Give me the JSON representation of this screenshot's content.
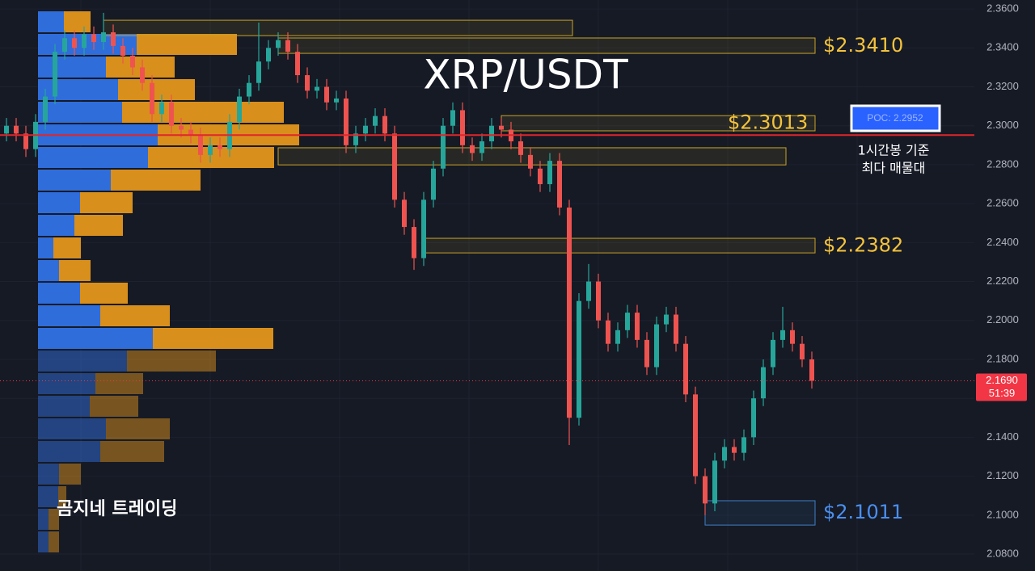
{
  "chart_data": {
    "type": "candlestick",
    "title": "XRP/USDT",
    "ylim": [
      2.0713,
      2.3646
    ],
    "yticks": [
      {
        "value": 2.08,
        "label": "2.0800"
      },
      {
        "value": 2.1,
        "label": "2.1000"
      },
      {
        "value": 2.12,
        "label": "2.1200"
      },
      {
        "value": 2.14,
        "label": "2.1400"
      },
      {
        "value": 2.16,
        "label": "2.1600"
      },
      {
        "value": 2.18,
        "label": "2.1800"
      },
      {
        "value": 2.2,
        "label": "2.2000"
      },
      {
        "value": 2.22,
        "label": "2.2200"
      },
      {
        "value": 2.24,
        "label": "2.2400"
      },
      {
        "value": 2.26,
        "label": "2.2600"
      },
      {
        "value": 2.28,
        "label": "2.2800"
      },
      {
        "value": 2.3,
        "label": "2.3000"
      },
      {
        "value": 2.32,
        "label": "2.3200"
      },
      {
        "value": 2.34,
        "label": "2.3400"
      },
      {
        "value": 2.36,
        "label": "2.3600"
      }
    ],
    "grid": true,
    "up_color": "#26a69a",
    "down_color": "#ef5350",
    "open": [
      2.296,
      2.3,
      2.296,
      2.288,
      2.302,
      2.315,
      2.338,
      2.345,
      2.34,
      2.347,
      2.343,
      2.348,
      2.341,
      2.336,
      2.33,
      2.322,
      2.306,
      2.312,
      2.3,
      2.298,
      2.295,
      2.285,
      2.29,
      2.288,
      2.302,
      2.315,
      2.322,
      2.333,
      2.34,
      2.344,
      2.338,
      2.326,
      2.318,
      2.32,
      2.312,
      2.314,
      2.29,
      2.296,
      2.3,
      2.305,
      2.296,
      2.262,
      2.248,
      2.232,
      2.262,
      2.278,
      2.3,
      2.308,
      2.29,
      2.286,
      2.292,
      2.3,
      2.298,
      2.292,
      2.285,
      2.278,
      2.27,
      2.282,
      2.258,
      2.15,
      2.21,
      2.22,
      2.2,
      2.188,
      2.195,
      2.204,
      2.19,
      2.176,
      2.198,
      2.203,
      2.188,
      2.162,
      2.12,
      2.106,
      2.128,
      2.135,
      2.132,
      2.14,
      2.16,
      2.176,
      2.19,
      2.195,
      2.188,
      2.18
    ],
    "high": [
      2.304,
      2.304,
      2.3,
      2.306,
      2.319,
      2.342,
      2.349,
      2.349,
      2.351,
      2.351,
      2.358,
      2.352,
      2.345,
      2.34,
      2.334,
      2.326,
      2.316,
      2.316,
      2.304,
      2.302,
      2.299,
      2.294,
      2.294,
      2.306,
      2.319,
      2.326,
      2.353,
      2.344,
      2.348,
      2.348,
      2.342,
      2.33,
      2.324,
      2.324,
      2.318,
      2.318,
      2.3,
      2.304,
      2.309,
      2.309,
      2.3,
      2.266,
      2.252,
      2.266,
      2.282,
      2.304,
      2.312,
      2.312,
      2.294,
      2.296,
      2.304,
      2.304,
      2.302,
      2.296,
      2.289,
      2.282,
      2.286,
      2.286,
      2.262,
      2.214,
      2.229,
      2.224,
      2.204,
      2.199,
      2.208,
      2.208,
      2.194,
      2.202,
      2.207,
      2.207,
      2.192,
      2.166,
      2.124,
      2.132,
      2.139,
      2.139,
      2.144,
      2.164,
      2.18,
      2.194,
      2.207,
      2.199,
      2.192,
      2.184
    ],
    "low": [
      2.292,
      2.292,
      2.284,
      2.284,
      2.298,
      2.311,
      2.334,
      2.336,
      2.336,
      2.339,
      2.339,
      2.337,
      2.332,
      2.326,
      2.318,
      2.302,
      2.302,
      2.296,
      2.294,
      2.291,
      2.281,
      2.281,
      2.284,
      2.284,
      2.298,
      2.311,
      2.318,
      2.329,
      2.336,
      2.334,
      2.322,
      2.314,
      2.314,
      2.308,
      2.308,
      2.286,
      2.286,
      2.292,
      2.296,
      2.292,
      2.258,
      2.244,
      2.226,
      2.228,
      2.258,
      2.274,
      2.296,
      2.286,
      2.282,
      2.282,
      2.288,
      2.294,
      2.288,
      2.281,
      2.274,
      2.266,
      2.266,
      2.254,
      2.136,
      2.146,
      2.206,
      2.196,
      2.184,
      2.184,
      2.191,
      2.186,
      2.172,
      2.172,
      2.194,
      2.184,
      2.158,
      2.116,
      2.1,
      2.102,
      2.124,
      2.128,
      2.128,
      2.136,
      2.156,
      2.172,
      2.186,
      2.184,
      2.176,
      2.165
    ],
    "close": [
      2.3,
      2.296,
      2.288,
      2.302,
      2.315,
      2.338,
      2.345,
      2.34,
      2.347,
      2.343,
      2.348,
      2.341,
      2.336,
      2.33,
      2.322,
      2.306,
      2.312,
      2.3,
      2.298,
      2.295,
      2.285,
      2.29,
      2.288,
      2.302,
      2.315,
      2.322,
      2.333,
      2.34,
      2.344,
      2.338,
      2.326,
      2.318,
      2.32,
      2.312,
      2.314,
      2.29,
      2.296,
      2.3,
      2.305,
      2.296,
      2.262,
      2.248,
      2.232,
      2.262,
      2.278,
      2.3,
      2.308,
      2.29,
      2.286,
      2.292,
      2.3,
      2.298,
      2.292,
      2.285,
      2.278,
      2.27,
      2.282,
      2.258,
      2.15,
      2.21,
      2.22,
      2.2,
      2.188,
      2.195,
      2.204,
      2.19,
      2.176,
      2.198,
      2.203,
      2.188,
      2.162,
      2.12,
      2.106,
      2.128,
      2.135,
      2.132,
      2.14,
      2.16,
      2.176,
      2.19,
      2.195,
      2.188,
      2.18,
      2.169
    ],
    "volume_profile": {
      "buy_color": "#2f6ddb",
      "sell_color": "#d98f1c",
      "buy": [
        32,
        122,
        84,
        99,
        104,
        148,
        136,
        90,
        52,
        45,
        19,
        26,
        52,
        77,
        142,
        110,
        71,
        64,
        84,
        77,
        26,
        25,
        13,
        13
      ],
      "sell": [
        33,
        124,
        85,
        95,
        200,
        175,
        156,
        111,
        65,
        60,
        34,
        39,
        59,
        86,
        149,
        110,
        59,
        60,
        79,
        79,
        27,
        10,
        13,
        13
      ]
    },
    "zones": [
      {
        "low": 2.3463,
        "high": 2.3542,
        "start": 10,
        "end": 58,
        "color": "#c9a227"
      },
      {
        "low": 2.3372,
        "high": 2.3451,
        "start": 28,
        "end": 83,
        "color": "#c9a227"
      },
      {
        "low": 2.2974,
        "high": 2.3052,
        "start": 51,
        "end": 83,
        "color": "#c9a227"
      },
      {
        "low": 2.2799,
        "high": 2.2887,
        "start": 28,
        "end": 80,
        "color": "#c9a227"
      },
      {
        "low": 2.2347,
        "high": 2.2422,
        "start": 43,
        "end": 83,
        "color": "#c9a227"
      },
      {
        "low": 2.0949,
        "high": 2.1074,
        "start": 72,
        "end": 83,
        "color": "#3f7fc6"
      }
    ],
    "annotations": [
      {
        "label": "$2.3410",
        "value": 2.341,
        "color": "#f5c33b"
      },
      {
        "label": "$2.3013",
        "value": 2.3013,
        "color": "#f5c33b"
      },
      {
        "label": "$2.2382",
        "value": 2.2382,
        "color": "#f5c33b"
      },
      {
        "label": "$2.1011",
        "value": 2.1011,
        "color": "#4a8ff0"
      }
    ],
    "poc": {
      "value": 2.2952,
      "label": "POC: 2.2952",
      "color": "#e0262b"
    },
    "note": [
      "1시간봉 기준",
      "최다 매물대"
    ],
    "last_price": {
      "value": 2.169,
      "label": "2.1690",
      "color": "#f23645"
    },
    "countdown": "51:39",
    "watermark": "곰지네 트레이딩"
  }
}
